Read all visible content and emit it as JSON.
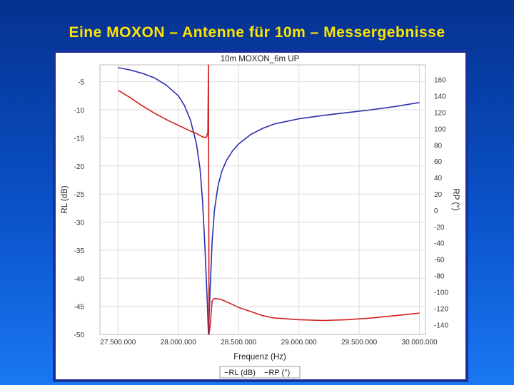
{
  "slide": {
    "title": "Eine MOXON – Antenne für 10m – Messergebnisse"
  },
  "chart_data": {
    "type": "line",
    "title": "10m MOXON_6m UP",
    "xlabel": "Frequenz (Hz)",
    "ylabel_left": "RL (dB)",
    "ylabel_right": "RP (°)",
    "xlim": [
      27350000,
      30050000
    ],
    "ylim_left": [
      -50,
      -2
    ],
    "ylim_right": [
      -152,
      178
    ],
    "x_ticks": [
      27500000,
      28000000,
      28500000,
      29000000,
      29500000,
      30000000
    ],
    "x_tick_labels": [
      "27.500.000",
      "28.000.000",
      "28.500.000",
      "29.000.000",
      "29.500.000",
      "30.000.000"
    ],
    "y_left_ticks": [
      -5,
      -10,
      -15,
      -20,
      -25,
      -30,
      -35,
      -40,
      -45,
      -50
    ],
    "y_left_tick_labels": [
      "-5",
      "-10",
      "-15",
      "-20",
      "-25",
      "-30",
      "-35",
      "-40",
      "-45",
      "-50"
    ],
    "y_right_ticks": [
      160,
      140,
      120,
      100,
      80,
      60,
      40,
      20,
      0,
      -20,
      -40,
      -60,
      -80,
      -100,
      -120,
      -140
    ],
    "y_right_tick_labels": [
      "160",
      "140",
      "120",
      "100",
      "80",
      "60",
      "40",
      "20",
      "0",
      "-20",
      "-40",
      "-60",
      "-80",
      "-100",
      "-120",
      "-140"
    ],
    "grid": true,
    "legend_position": "bottom-center",
    "legend_items": [
      "−RL (dB)",
      "−RP (°)"
    ],
    "series": [
      {
        "name": "RL (dB)",
        "axis": "left",
        "color": "#2b2fb0",
        "x": [
          27500000,
          27600000,
          27700000,
          27800000,
          27900000,
          28000000,
          28050000,
          28100000,
          28150000,
          28180000,
          28200000,
          28220000,
          28240000,
          28250000,
          28260000,
          28280000,
          28300000,
          28330000,
          28360000,
          28400000,
          28450000,
          28500000,
          28600000,
          28700000,
          28800000,
          29000000,
          29200000,
          29400000,
          29600000,
          29800000,
          30000000
        ],
        "y": [
          -2.5,
          -2.9,
          -3.5,
          -4.3,
          -5.6,
          -7.5,
          -9.2,
          -11.8,
          -16.0,
          -20.5,
          -26.0,
          -34.0,
          -44.0,
          -50.0,
          -44.0,
          -33.5,
          -27.8,
          -23.5,
          -21.0,
          -19.0,
          -17.3,
          -16.1,
          -14.4,
          -13.3,
          -12.5,
          -11.6,
          -11.0,
          -10.5,
          -10.0,
          -9.4,
          -8.7
        ]
      },
      {
        "name": "RP (°)",
        "axis": "right",
        "color": "#d11f1f",
        "x": [
          27500000,
          27600000,
          27700000,
          27800000,
          27900000,
          28000000,
          28100000,
          28150000,
          28200000,
          28220000,
          28235000,
          28245000,
          28250000,
          28255000,
          28265000,
          28280000,
          28300000,
          28350000,
          28400000,
          28500000,
          28600000,
          28700000,
          28800000,
          29000000,
          29200000,
          29400000,
          29600000,
          29800000,
          30000000
        ],
        "y": [
          147,
          138,
          128,
          119,
          111,
          104,
          97,
          94,
          90,
          89,
          90,
          96,
          178,
          -152,
          -140,
          -111,
          -108,
          -109,
          -112,
          -119,
          -124,
          -129,
          -132,
          -134,
          -135,
          -134,
          -132,
          -129,
          -126
        ]
      }
    ]
  }
}
